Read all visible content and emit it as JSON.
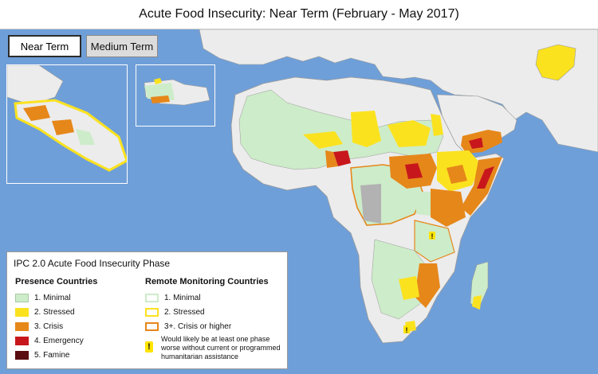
{
  "title": "Acute Food Insecurity: Near Term (February - May 2017)",
  "tabs": [
    {
      "label": "Near Term",
      "active": true
    },
    {
      "label": "Medium Term",
      "active": false
    }
  ],
  "colors": {
    "water": "#6f9fd8",
    "land_other": "#ececec",
    "border": "#9a9a9a",
    "minimal": "#cdecc9",
    "stressed": "#fbe21f",
    "crisis": "#e6871a",
    "emergency": "#c8171c",
    "famine": "#5a0d10",
    "no_data": "#b2b2b2"
  },
  "legend": {
    "title": "IPC 2.0 Acute Food Insecurity Phase",
    "presence_heading": "Presence Countries",
    "remote_heading": "Remote Monitoring Countries",
    "presence": [
      {
        "label": "1. Minimal",
        "color": "#cdecc9"
      },
      {
        "label": "2. Stressed",
        "color": "#fbe21f"
      },
      {
        "label": "3. Crisis",
        "color": "#e6871a"
      },
      {
        "label": "4. Emergency",
        "color": "#c8171c"
      },
      {
        "label": "5. Famine",
        "color": "#5a0d10"
      }
    ],
    "remote": [
      {
        "label": "1. Minimal",
        "color": "#cdecc9"
      },
      {
        "label": "2. Stressed",
        "color": "#fbe21f"
      },
      {
        "label": "3+. Crisis or higher",
        "color": "#e6871a"
      }
    ],
    "note_symbol": "!",
    "note": "Would likely be at least one phase worse without current or programmed humanitarian assistance"
  },
  "map": {
    "markers": [
      "!",
      "!",
      "!"
    ]
  }
}
